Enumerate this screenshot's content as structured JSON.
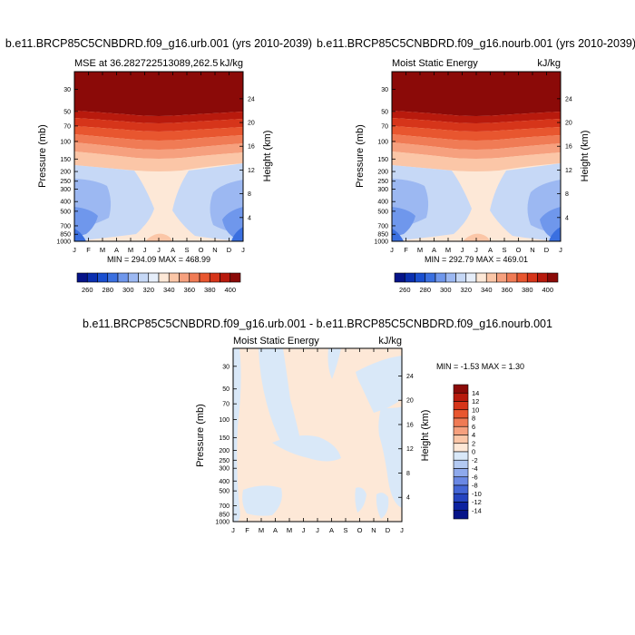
{
  "page": {
    "background": "#ffffff"
  },
  "panels": [
    {
      "id": "top-left",
      "main_title": "b.e11.BRCP85C5CNBDRD.f09_g16.urb.001 (yrs 2010-2039)",
      "left_subtitle": "MSE at 36.282722513089,262.5",
      "right_subtitle": "kJ/kg",
      "ylabel_left": "Pressure (mb)",
      "ylabel_right": "Height (km)",
      "minmax": "MIN = 294.09 MAX = 468.99"
    },
    {
      "id": "top-right",
      "main_title": "b.e11.BRCP85C5CNBDRD.f09_g16.nourb.001 (yrs 2010-2039)",
      "left_subtitle": "Moist Static Energy",
      "right_subtitle": "kJ/kg",
      "ylabel_left": "Pressure (mb)",
      "ylabel_right": "Height (km)",
      "minmax": "MIN = 292.79 MAX = 469.01"
    },
    {
      "id": "bottom-diff",
      "main_title": "b.e11.BRCP85C5CNBDRD.f09_g16.urb.001 - b.e11.BRCP85C5CNBDRD.f09_g16.nourb.001",
      "left_subtitle": "Moist Static Energy",
      "right_subtitle": "kJ/kg",
      "ylabel_left": "Pressure (mb)",
      "ylabel_right": "Height (km)",
      "minmax": "MIN =  -1.53 MAX =   1.30"
    }
  ],
  "axes": {
    "months": [
      "J",
      "F",
      "M",
      "A",
      "M",
      "J",
      "J",
      "A",
      "S",
      "O",
      "N",
      "D",
      "J"
    ],
    "pressure_ticks": [
      "30",
      "50",
      "70",
      "100",
      "150",
      "200",
      "250",
      "300",
      "400",
      "500",
      "700",
      "850",
      "1000"
    ],
    "height_ticks_top": [
      "24",
      "20",
      "16",
      "12",
      "8",
      "4"
    ],
    "height_ticks_bottom": [
      "24",
      "20",
      "16",
      "12",
      "8",
      "4"
    ]
  },
  "colorbar_top": {
    "labels": [
      "260",
      "280",
      "300",
      "320",
      "340",
      "360",
      "380",
      "400"
    ],
    "colors": [
      "#061489",
      "#0a2fb0",
      "#1a4fd0",
      "#3a6fe0",
      "#6f97ec",
      "#9cb8f2",
      "#c6d8f6",
      "#e6eefa",
      "#fde8d7",
      "#fbc6a7",
      "#f6a07e",
      "#f07b55",
      "#e8562f",
      "#d6351a",
      "#b81a0d",
      "#8b0a08"
    ]
  },
  "colorbar_diff": {
    "labels": [
      "14",
      "12",
      "10",
      "8",
      "6",
      "4",
      "2",
      "0",
      "-2",
      "-4",
      "-6",
      "-8",
      "-10",
      "-12",
      "-14"
    ],
    "colors": [
      "#8b0a08",
      "#b81a0d",
      "#d6351a",
      "#e8562f",
      "#f07b55",
      "#f6a07e",
      "#fbc6a7",
      "#fde8d7",
      "#d9e8f8",
      "#b3c9f2",
      "#8ea9ec",
      "#6a88e4",
      "#4466d6",
      "#2544c0",
      "#0c22a0",
      "#061489"
    ]
  },
  "chart_data": [
    {
      "type": "heatmap",
      "title": "b.e11.BRCP85C5CNBDRD.f09_g16.urb.001 (yrs 2010-2039)",
      "subtitle": "MSE at 36.282722513089,262.5",
      "units": "kJ/kg",
      "x": [
        "J",
        "F",
        "M",
        "A",
        "M",
        "J",
        "J",
        "A",
        "S",
        "O",
        "N",
        "D",
        "J"
      ],
      "xlabel": "",
      "ylabel": "Pressure (mb)",
      "y_right_label": "Height (km)",
      "y_scale": "log",
      "ylim": [
        1000,
        20
      ],
      "levels": [
        260,
        270,
        280,
        290,
        300,
        310,
        320,
        330,
        340,
        350,
        360,
        370,
        380,
        390,
        400,
        410
      ],
      "min": 294.09,
      "max": 468.99
    },
    {
      "type": "heatmap",
      "title": "b.e11.BRCP85C5CNBDRD.f09_g16.nourb.001 (yrs 2010-2039)",
      "subtitle": "Moist Static Energy",
      "units": "kJ/kg",
      "x": [
        "J",
        "F",
        "M",
        "A",
        "M",
        "J",
        "J",
        "A",
        "S",
        "O",
        "N",
        "D",
        "J"
      ],
      "xlabel": "",
      "ylabel": "Pressure (mb)",
      "y_right_label": "Height (km)",
      "y_scale": "log",
      "ylim": [
        1000,
        20
      ],
      "levels": [
        260,
        270,
        280,
        290,
        300,
        310,
        320,
        330,
        340,
        350,
        360,
        370,
        380,
        390,
        400,
        410
      ],
      "min": 292.79,
      "max": 469.01
    },
    {
      "type": "heatmap",
      "title": "b.e11.BRCP85C5CNBDRD.f09_g16.urb.001 - b.e11.BRCP85C5CNBDRD.f09_g16.nourb.001",
      "subtitle": "Moist Static Energy",
      "units": "kJ/kg",
      "x": [
        "J",
        "F",
        "M",
        "A",
        "M",
        "J",
        "J",
        "A",
        "S",
        "O",
        "N",
        "D",
        "J"
      ],
      "xlabel": "",
      "ylabel": "Pressure (mb)",
      "y_right_label": "Height (km)",
      "y_scale": "log",
      "ylim": [
        1000,
        20
      ],
      "levels": [
        -14,
        -12,
        -10,
        -8,
        -6,
        -4,
        -2,
        0,
        2,
        4,
        6,
        8,
        10,
        12,
        14
      ],
      "min": -1.53,
      "max": 1.3
    }
  ]
}
